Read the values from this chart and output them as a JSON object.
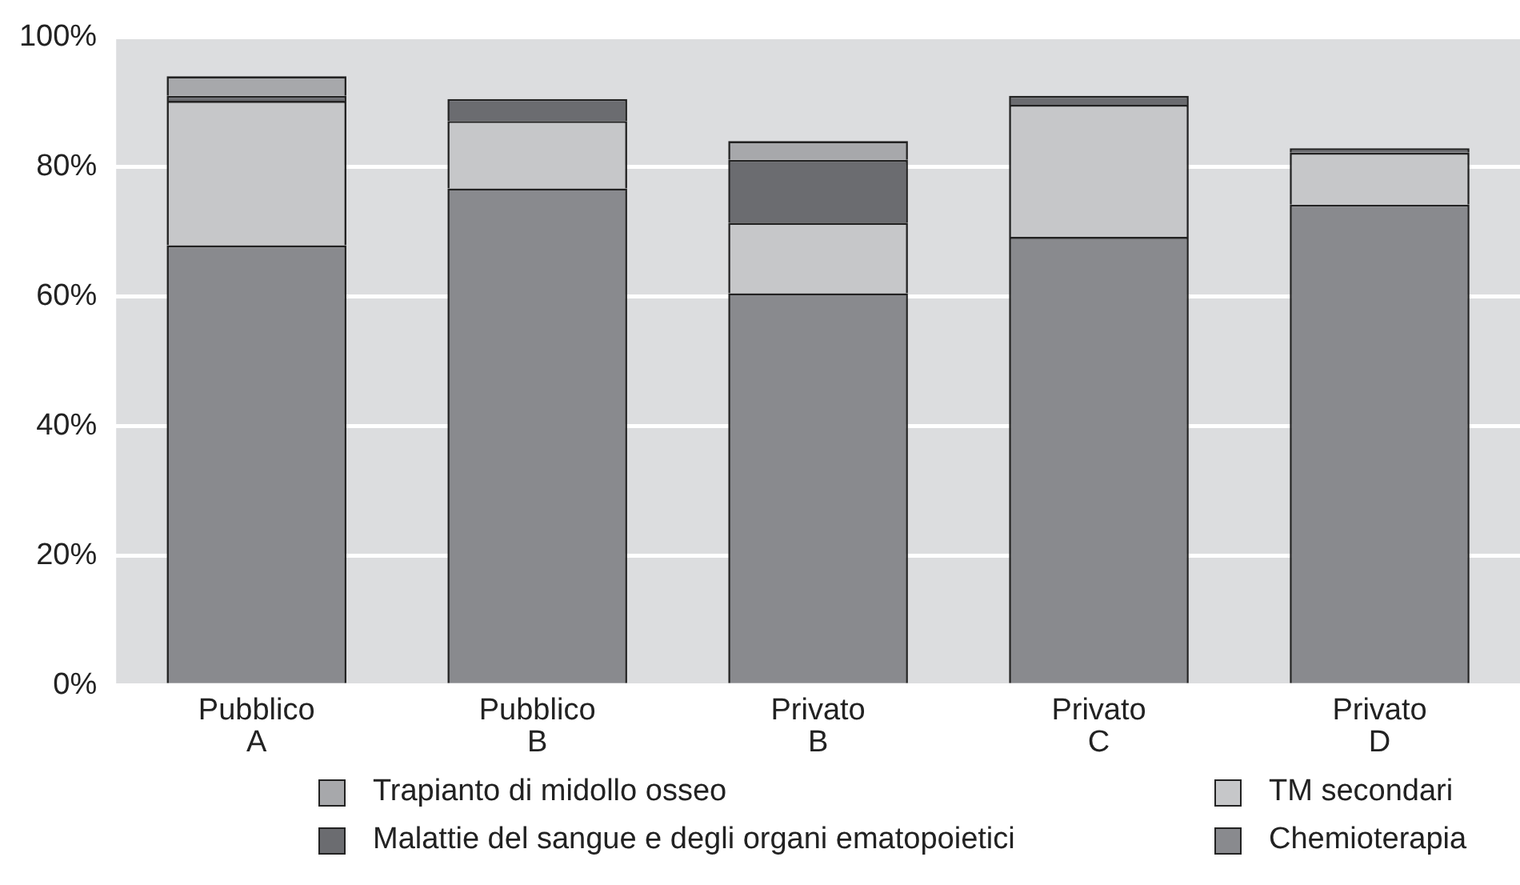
{
  "chart_data": {
    "type": "bar",
    "stacked": true,
    "categories": [
      "Pubblico\nA",
      "Pubblico\nB",
      "Privato\nB",
      "Privato\nC",
      "Privato\nD"
    ],
    "series": [
      {
        "name": "Chemioterapia",
        "color": "#898a8e",
        "values": [
          67.9,
          76.7,
          60.5,
          69.2,
          74.2
        ]
      },
      {
        "name": "TM secondari",
        "color": "#c6c7c9",
        "values": [
          22.3,
          10.4,
          10.9,
          20.4,
          8.0
        ]
      },
      {
        "name": "Malattie del sangue e degli organi ematopoietici",
        "color": "#6b6c70",
        "values": [
          0.8,
          3.4,
          9.7,
          1.4,
          0.7
        ]
      },
      {
        "name": "Trapianto di midollo osseo",
        "color": "#a7a8ab",
        "values": [
          3.0,
          0,
          2.9,
          0,
          0
        ]
      }
    ],
    "ylim": [
      0,
      100
    ],
    "yticks": [
      {
        "value": 0,
        "label": "0%"
      },
      {
        "value": 20,
        "label": "20%"
      },
      {
        "value": 40,
        "label": "40%"
      },
      {
        "value": 60,
        "label": "60%"
      },
      {
        "value": 80,
        "label": "80%"
      },
      {
        "value": 100,
        "label": "100%"
      }
    ],
    "grid": "y",
    "legend": "bottom"
  }
}
